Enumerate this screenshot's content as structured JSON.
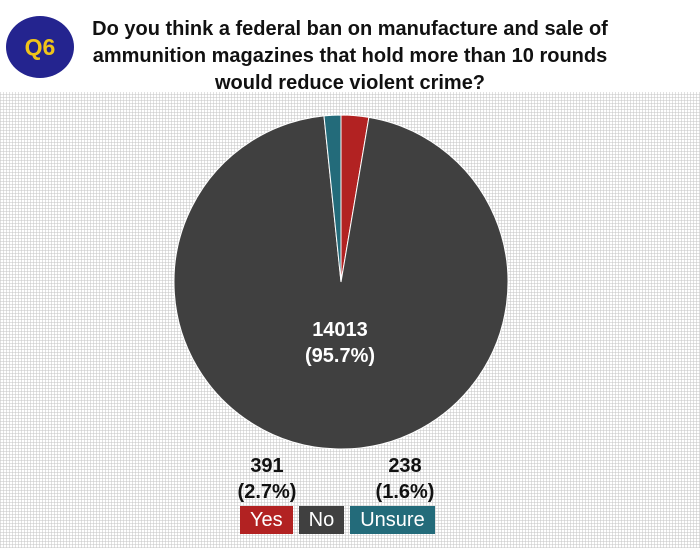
{
  "badge": "Q6",
  "title_lines": [
    "Do you think a federal ban on manufacture and sale of",
    "ammunition magazines that hold more than 10 rounds",
    "would reduce violent crime?"
  ],
  "colors": {
    "badge_bg": "#24248f",
    "badge_text": "#f0c419",
    "yes": "#b22222",
    "no": "#404040",
    "unsure": "#236b7a"
  },
  "chart_data": {
    "type": "pie",
    "categories": [
      "Yes",
      "No",
      "Unsure"
    ],
    "values": [
      391,
      14013,
      238
    ],
    "percent_labels": [
      "(2.7%)",
      "(95.7%)",
      "(1.6%)"
    ],
    "value_labels": [
      "391",
      "14013",
      "238"
    ],
    "colors": [
      "#b22222",
      "#404040",
      "#236b7a"
    ],
    "legend_position": "bottom"
  },
  "legend": [
    {
      "label": "Yes",
      "color": "#b22222"
    },
    {
      "label": "No",
      "color": "#404040"
    },
    {
      "label": "Unsure",
      "color": "#236b7a"
    }
  ]
}
